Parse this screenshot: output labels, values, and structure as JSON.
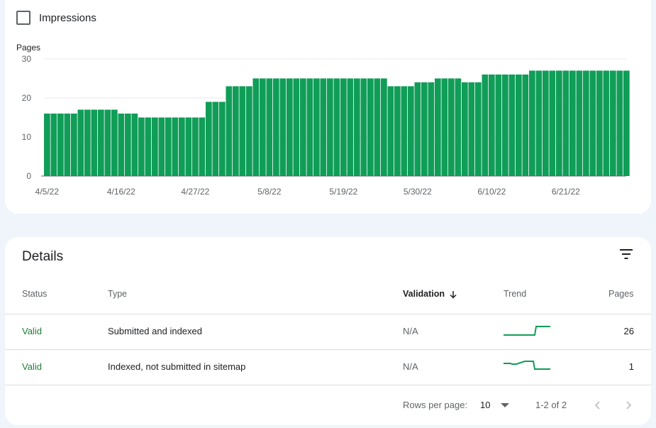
{
  "chart_section": {
    "impressions_label": "Impressions",
    "impressions_checked": false
  },
  "chart_data": {
    "type": "bar",
    "ylabel": "Pages",
    "ylim": [
      0,
      30
    ],
    "yticks": [
      "0",
      "10",
      "20",
      "30"
    ],
    "xtick_labels": [
      "4/5/22",
      "4/16/22",
      "4/27/22",
      "5/8/22",
      "5/19/22",
      "5/30/22",
      "6/10/22",
      "6/21/22"
    ],
    "bar_color": "#109d58",
    "values": [
      16,
      16,
      16,
      16,
      16,
      17,
      17,
      17,
      17,
      17,
      17,
      16,
      16,
      16,
      15,
      15,
      15,
      15,
      15,
      15,
      15,
      15,
      15,
      15,
      19,
      19,
      19,
      23,
      23,
      23,
      23,
      25,
      25,
      25,
      25,
      25,
      25,
      25,
      25,
      25,
      25,
      25,
      25,
      25,
      25,
      25,
      25,
      25,
      25,
      25,
      25,
      23,
      23,
      23,
      23,
      24,
      24,
      24,
      25,
      25,
      25,
      25,
      24,
      24,
      24,
      26,
      26,
      26,
      26,
      26,
      26,
      26,
      27,
      27,
      27,
      27,
      27,
      27,
      27,
      27,
      27,
      27,
      27,
      27,
      27,
      27,
      27
    ]
  },
  "details": {
    "title": "Details",
    "columns": {
      "status": "Status",
      "type": "Type",
      "validation": "Validation",
      "trend": "Trend",
      "pages": "Pages"
    },
    "rows": [
      {
        "status": "Valid",
        "type": "Submitted and indexed",
        "validation": "N/A",
        "pages": "26"
      },
      {
        "status": "Valid",
        "type": "Indexed, not submitted in sitemap",
        "validation": "N/A",
        "pages": "1"
      }
    ],
    "footer": {
      "rows_per_page_label": "Rows per page:",
      "rows_per_page_value": "10",
      "range": "1-2 of 2"
    },
    "accent_color": "#1e7e34"
  }
}
